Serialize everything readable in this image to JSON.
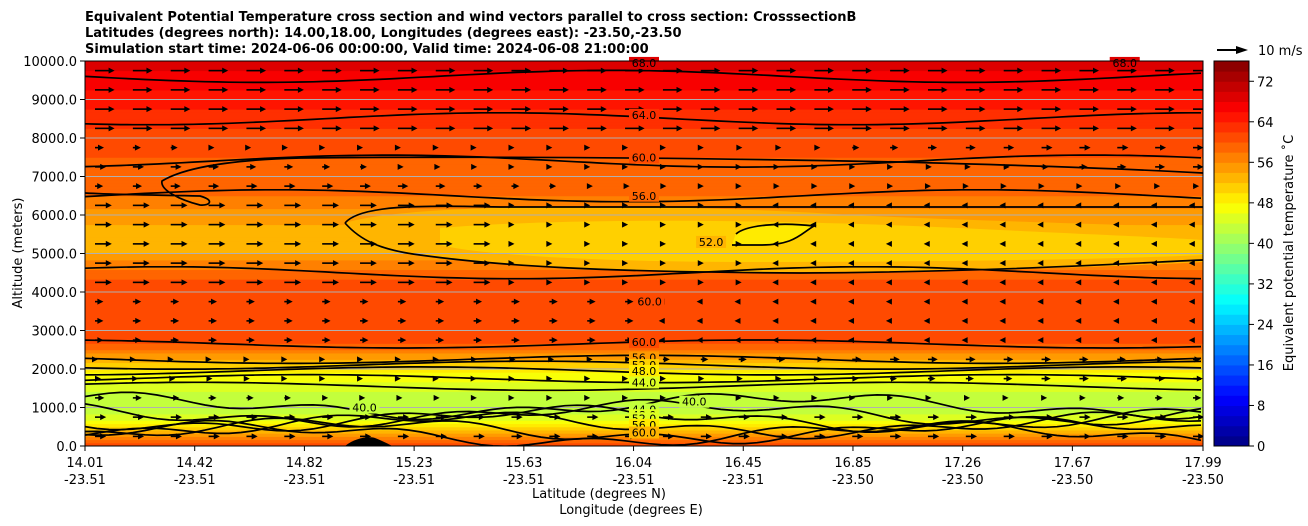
{
  "chart_data": {
    "type": "contourf",
    "title_lines": [
      "Equivalent Potential Temperature cross section and wind vectors parallel to cross section: CrosssectionB",
      "Latitudes (degrees north): 14.00,18.00, Longitudes (degrees east): -23.50,-23.50",
      "Simulation start time: 2024-06-06 00:00:00, Valid time: 2024-06-08 21:00:00"
    ],
    "ylabel": "Altitude (meters)",
    "xlabel_lat": "Latitude (degrees N)",
    "xlabel_lon": "Longitude (degrees E)",
    "ylim": [
      0,
      10000
    ],
    "y_ticks": [
      "0.0",
      "1000.0",
      "2000.0",
      "3000.0",
      "4000.0",
      "5000.0",
      "6000.0",
      "7000.0",
      "8000.0",
      "9000.0",
      "10000.0"
    ],
    "y_tick_values": [
      0,
      1000,
      2000,
      3000,
      4000,
      5000,
      6000,
      7000,
      8000,
      9000,
      10000
    ],
    "x_ticks": [
      {
        "lat": "14.01",
        "lon": "-23.51"
      },
      {
        "lat": "14.42",
        "lon": "-23.51"
      },
      {
        "lat": "14.82",
        "lon": "-23.51"
      },
      {
        "lat": "15.23",
        "lon": "-23.51"
      },
      {
        "lat": "15.63",
        "lon": "-23.51"
      },
      {
        "lat": "16.04",
        "lon": "-23.51"
      },
      {
        "lat": "16.45",
        "lon": "-23.51"
      },
      {
        "lat": "16.85",
        "lon": "-23.50"
      },
      {
        "lat": "17.26",
        "lon": "-23.50"
      },
      {
        "lat": "17.67",
        "lon": "-23.50"
      },
      {
        "lat": "17.99",
        "lon": "-23.50"
      }
    ],
    "colorbar": {
      "label": "Equivalent potential temperature $^\\circ$C",
      "label_text": "Equivalent potential temperature ˚C",
      "ticks": [
        "0",
        "8",
        "16",
        "24",
        "32",
        "40",
        "48",
        "56",
        "64",
        "72"
      ],
      "tick_values": [
        0,
        8,
        16,
        24,
        32,
        40,
        48,
        56,
        64,
        72
      ],
      "range": [
        0,
        76
      ],
      "levels_step": 2
    },
    "quiver_key": "10 m/s",
    "theta_e_profile": [
      {
        "z": 0,
        "v": 62
      },
      {
        "z": 200,
        "v": 58
      },
      {
        "z": 400,
        "v": 52
      },
      {
        "z": 600,
        "v": 47
      },
      {
        "z": 800,
        "v": 44
      },
      {
        "z": 1000,
        "v": 43
      },
      {
        "z": 1300,
        "v": 43
      },
      {
        "z": 1600,
        "v": 45
      },
      {
        "z": 1900,
        "v": 48
      },
      {
        "z": 2200,
        "v": 53
      },
      {
        "z": 2500,
        "v": 58
      },
      {
        "z": 2800,
        "v": 61
      },
      {
        "z": 3500,
        "v": 62
      },
      {
        "z": 4200,
        "v": 61
      },
      {
        "z": 4600,
        "v": 58
      },
      {
        "z": 5000,
        "v": 54
      },
      {
        "z": 5500,
        "v": 53
      },
      {
        "z": 6000,
        "v": 55
      },
      {
        "z": 6500,
        "v": 58
      },
      {
        "z": 7000,
        "v": 59
      },
      {
        "z": 7500,
        "v": 60
      },
      {
        "z": 8000,
        "v": 61
      },
      {
        "z": 8500,
        "v": 63
      },
      {
        "z": 9000,
        "v": 65
      },
      {
        "z": 9500,
        "v": 67
      },
      {
        "z": 10000,
        "v": 69
      }
    ],
    "contour_labels": [
      {
        "text": "68.0",
        "x": 0.5,
        "z": 9950
      },
      {
        "text": "68.0",
        "x": 0.93,
        "z": 9950
      },
      {
        "text": "64.0",
        "x": 0.5,
        "z": 8600
      },
      {
        "text": "60.0",
        "x": 0.5,
        "z": 7500
      },
      {
        "text": "56.0",
        "x": 0.5,
        "z": 6500
      },
      {
        "text": "52.0",
        "x": 0.56,
        "z": 5300
      },
      {
        "text": "60.0",
        "x": 0.505,
        "z": 3750
      },
      {
        "text": "60.0",
        "x": 0.5,
        "z": 2700
      },
      {
        "text": "56.0",
        "x": 0.5,
        "z": 2300
      },
      {
        "text": "52.0",
        "x": 0.5,
        "z": 2100
      },
      {
        "text": "48.0",
        "x": 0.5,
        "z": 1950
      },
      {
        "text": "44.0",
        "x": 0.5,
        "z": 1650
      },
      {
        "text": "44.0",
        "x": 0.5,
        "z": 950
      },
      {
        "text": "48.0",
        "x": 0.5,
        "z": 800
      },
      {
        "text": "52.0",
        "x": 0.5,
        "z": 720
      },
      {
        "text": "56.0",
        "x": 0.5,
        "z": 550
      },
      {
        "text": "60.0",
        "x": 0.5,
        "z": 350
      },
      {
        "text": "40.0",
        "x": 0.25,
        "z": 1000
      },
      {
        "text": "40.0",
        "x": 0.545,
        "z": 1150
      }
    ]
  },
  "colors": {
    "grid": "#b0b0b0",
    "contour": "#000000"
  }
}
